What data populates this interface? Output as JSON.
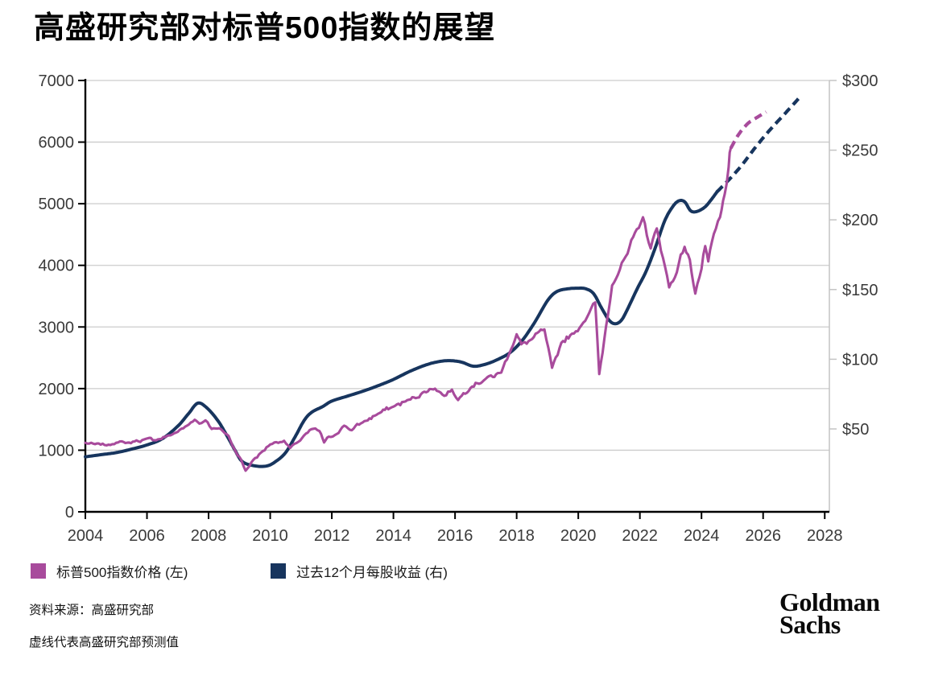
{
  "title": "高盛研究部对标普500指数的展望",
  "legend": [
    {
      "label": "标普500指数价格 (左)",
      "color": "#a84b9c"
    },
    {
      "label": "过去12个月每股收益 (右)",
      "color": "#17355e"
    }
  ],
  "footer": {
    "source": "资料来源：高盛研究部",
    "note": "虚线代表高盛研究部预测值"
  },
  "logo": {
    "line1": "Goldman",
    "line2": "Sachs"
  },
  "colors": {
    "price": "#a84b9c",
    "eps": "#17355e",
    "grid": "#cccccc",
    "axis": "#000000",
    "right_axis": "#c4c4c4",
    "tick_label": "#3a3a3a",
    "background": "#ffffff"
  },
  "chart_data": {
    "type": "line",
    "title": "高盛研究部对标普500指数的展望",
    "x_axis": {
      "ticks": [
        2004,
        2006,
        2008,
        2010,
        2012,
        2014,
        2016,
        2018,
        2020,
        2022,
        2024,
        2026,
        2028
      ],
      "range": [
        2004,
        2028.3
      ]
    },
    "y_left_axis": {
      "ticks": [
        0,
        1000,
        2000,
        3000,
        4000,
        5000,
        6000,
        7000
      ],
      "range": [
        0,
        7000
      ],
      "series": "标普500指数价格"
    },
    "y_right_axis": {
      "tick_values": [
        50,
        100,
        150,
        200,
        250,
        300
      ],
      "tick_labels": [
        "$50",
        "$100",
        "$150",
        "$200",
        "$250",
        "$300"
      ],
      "series": "过去12个月每股收益"
    },
    "grid": "horizontal",
    "legend_position": "bottom",
    "forecast_note": "虚线代表高盛研究部预测值",
    "series": [
      {
        "name": "标普500指数价格 (左)",
        "axis": "left",
        "color": "#a84b9c",
        "style": "jagged",
        "dashed": false,
        "noise_seed": 7,
        "points": [
          [
            2004.0,
            1120
          ],
          [
            2004.25,
            1098
          ],
          [
            2004.5,
            1075
          ],
          [
            2004.75,
            1095
          ],
          [
            2005.0,
            1135
          ],
          [
            2005.3,
            1105
          ],
          [
            2005.6,
            1140
          ],
          [
            2005.9,
            1180
          ],
          [
            2006.3,
            1165
          ],
          [
            2006.7,
            1235
          ],
          [
            2007.0,
            1300
          ],
          [
            2007.3,
            1395
          ],
          [
            2007.55,
            1500
          ],
          [
            2007.7,
            1430
          ],
          [
            2007.9,
            1490
          ],
          [
            2008.1,
            1350
          ],
          [
            2008.4,
            1330
          ],
          [
            2008.65,
            1230
          ],
          [
            2008.9,
            960
          ],
          [
            2009.05,
            850
          ],
          [
            2009.2,
            670
          ],
          [
            2009.45,
            840
          ],
          [
            2009.7,
            960
          ],
          [
            2010.0,
            1095
          ],
          [
            2010.2,
            1125
          ],
          [
            2010.45,
            1165
          ],
          [
            2010.65,
            1040
          ],
          [
            2010.85,
            1105
          ],
          [
            2011.1,
            1245
          ],
          [
            2011.4,
            1335
          ],
          [
            2011.6,
            1305
          ],
          [
            2011.75,
            1120
          ],
          [
            2011.9,
            1205
          ],
          [
            2012.1,
            1255
          ],
          [
            2012.4,
            1395
          ],
          [
            2012.65,
            1335
          ],
          [
            2013.0,
            1445
          ],
          [
            2013.5,
            1595
          ],
          [
            2014.0,
            1705
          ],
          [
            2014.5,
            1815
          ],
          [
            2015.0,
            1950
          ],
          [
            2015.35,
            2005
          ],
          [
            2015.65,
            1885
          ],
          [
            2015.9,
            1990
          ],
          [
            2016.1,
            1830
          ],
          [
            2016.5,
            2030
          ],
          [
            2017.0,
            2170
          ],
          [
            2017.5,
            2255
          ],
          [
            2017.75,
            2560
          ],
          [
            2018.0,
            2900
          ],
          [
            2018.15,
            2705
          ],
          [
            2018.5,
            2805
          ],
          [
            2018.9,
            2950
          ],
          [
            2019.15,
            2310
          ],
          [
            2019.45,
            2745
          ],
          [
            2019.8,
            2890
          ],
          [
            2020.1,
            3040
          ],
          [
            2020.35,
            3240
          ],
          [
            2020.55,
            3370
          ],
          [
            2020.68,
            2210
          ],
          [
            2020.9,
            3010
          ],
          [
            2021.1,
            3700
          ],
          [
            2021.35,
            3955
          ],
          [
            2021.6,
            4180
          ],
          [
            2021.9,
            4560
          ],
          [
            2022.1,
            4790
          ],
          [
            2022.35,
            4310
          ],
          [
            2022.55,
            4580
          ],
          [
            2022.75,
            4150
          ],
          [
            2022.95,
            3630
          ],
          [
            2023.2,
            3905
          ],
          [
            2023.45,
            4300
          ],
          [
            2023.62,
            4080
          ],
          [
            2023.8,
            3570
          ],
          [
            2024.0,
            3950
          ],
          [
            2024.12,
            4280
          ],
          [
            2024.22,
            4040
          ],
          [
            2024.4,
            4480
          ],
          [
            2024.6,
            4750
          ],
          [
            2024.75,
            5120
          ],
          [
            2024.88,
            5620
          ],
          [
            2024.95,
            5900
          ]
        ]
      },
      {
        "name": "标普500指数价格预测",
        "axis": "left",
        "color": "#a84b9c",
        "style": "smooth",
        "dashed": true,
        "points": [
          [
            2024.95,
            5900
          ],
          [
            2025.2,
            6120
          ],
          [
            2025.5,
            6300
          ],
          [
            2025.8,
            6400
          ],
          [
            2026.1,
            6490
          ]
        ]
      },
      {
        "name": "过去12个月每股收益 (右)",
        "axis": "right",
        "color": "#17355e",
        "style": "smooth",
        "dashed": false,
        "points": [
          [
            2004.0,
            30
          ],
          [
            2004.5,
            31.5
          ],
          [
            2005.0,
            33
          ],
          [
            2005.5,
            35.5
          ],
          [
            2006.0,
            38.5
          ],
          [
            2006.5,
            43
          ],
          [
            2007.0,
            52
          ],
          [
            2007.35,
            61
          ],
          [
            2007.65,
            68.5
          ],
          [
            2007.95,
            65
          ],
          [
            2008.3,
            56
          ],
          [
            2008.6,
            45
          ],
          [
            2008.85,
            35
          ],
          [
            2009.1,
            26.5
          ],
          [
            2009.5,
            23.5
          ],
          [
            2009.9,
            23.5
          ],
          [
            2010.2,
            27
          ],
          [
            2010.5,
            33
          ],
          [
            2010.8,
            44
          ],
          [
            2011.1,
            56
          ],
          [
            2011.35,
            62
          ],
          [
            2011.7,
            66
          ],
          [
            2012.0,
            70
          ],
          [
            2012.5,
            73.5
          ],
          [
            2013.0,
            77
          ],
          [
            2013.5,
            81
          ],
          [
            2014.0,
            85.5
          ],
          [
            2014.5,
            91
          ],
          [
            2015.0,
            95.5
          ],
          [
            2015.4,
            98
          ],
          [
            2015.8,
            99
          ],
          [
            2016.2,
            98
          ],
          [
            2016.6,
            95
          ],
          [
            2017.0,
            96.5
          ],
          [
            2017.4,
            100
          ],
          [
            2017.8,
            105
          ],
          [
            2018.2,
            114
          ],
          [
            2018.6,
            127
          ],
          [
            2019.0,
            142
          ],
          [
            2019.3,
            148.5
          ],
          [
            2019.65,
            150.5
          ],
          [
            2020.0,
            151
          ],
          [
            2020.25,
            150.5
          ],
          [
            2020.5,
            147
          ],
          [
            2020.75,
            137
          ],
          [
            2021.0,
            128
          ],
          [
            2021.2,
            125.5
          ],
          [
            2021.4,
            128
          ],
          [
            2021.6,
            136
          ],
          [
            2021.9,
            150
          ],
          [
            2022.2,
            163
          ],
          [
            2022.5,
            180
          ],
          [
            2022.8,
            199
          ],
          [
            2023.05,
            209
          ],
          [
            2023.25,
            213.5
          ],
          [
            2023.45,
            213
          ],
          [
            2023.65,
            206.5
          ],
          [
            2023.85,
            206
          ],
          [
            2024.1,
            209
          ],
          [
            2024.3,
            214
          ],
          [
            2024.5,
            220
          ]
        ]
      },
      {
        "name": "过去12个月每股收益预测",
        "axis": "right",
        "color": "#17355e",
        "style": "smooth",
        "dashed": true,
        "points": [
          [
            2024.5,
            220
          ],
          [
            2024.9,
            229
          ],
          [
            2025.3,
            239
          ],
          [
            2025.75,
            252
          ],
          [
            2026.2,
            264
          ],
          [
            2026.7,
            276
          ],
          [
            2027.15,
            287
          ]
        ]
      }
    ]
  }
}
